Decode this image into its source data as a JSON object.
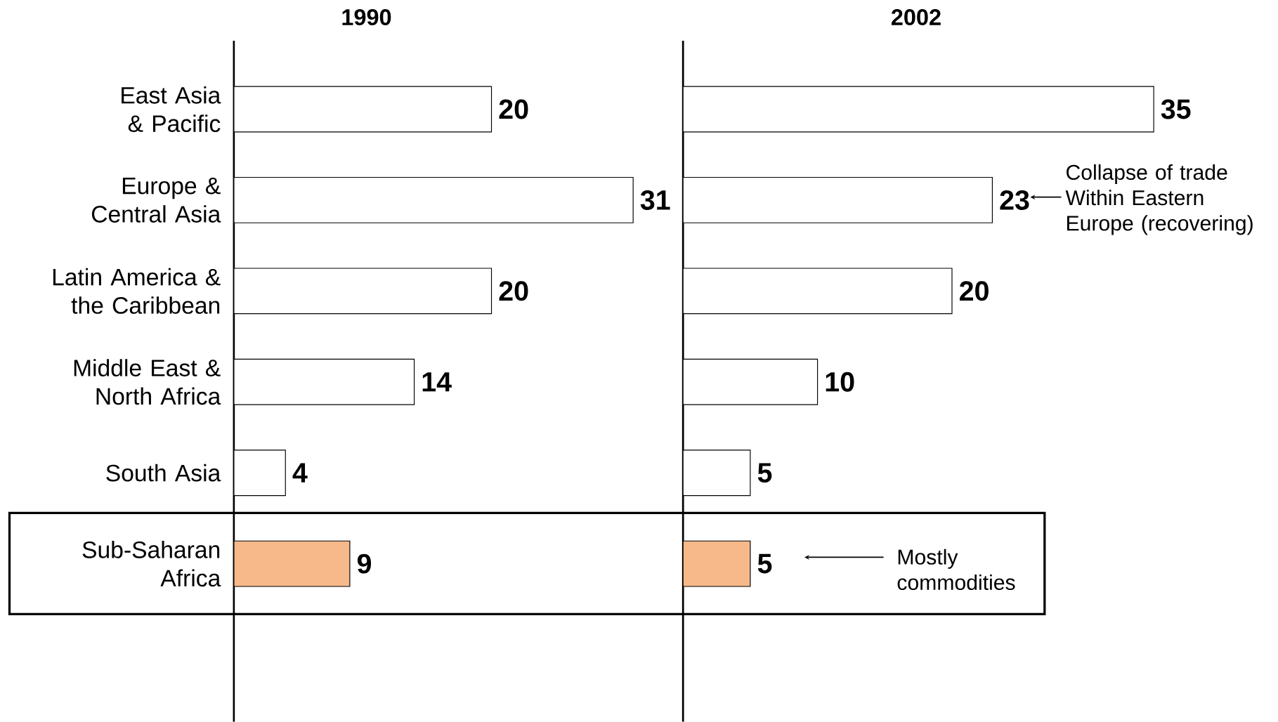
{
  "chart_data": [
    {
      "type": "bar",
      "orientation": "horizontal",
      "title": "1990",
      "categories": [
        "East Asia & Pacific",
        "Europe & Central Asia",
        "Latin America & the Caribbean",
        "Middle East & North Africa",
        "South Asia",
        "Sub-Saharan Africa"
      ],
      "values": [
        20,
        31,
        20,
        14,
        4,
        9
      ],
      "colors": [
        "#ffffff",
        "#ffffff",
        "#ffffff",
        "#ffffff",
        "#ffffff",
        "#f7b98a"
      ],
      "data_labels": true,
      "tick_labels": "y"
    },
    {
      "type": "bar",
      "orientation": "horizontal",
      "title": "2002",
      "categories": [
        null,
        null,
        null,
        null,
        null,
        null
      ],
      "values": [
        35,
        23,
        20,
        10,
        5,
        5
      ],
      "colors": [
        "#ffffff",
        "#ffffff",
        "#ffffff",
        "#ffffff",
        "#ffffff",
        "#f7b98a"
      ],
      "data_labels": true,
      "tick_labels": false,
      "annotations": [
        "Collapse of trade Within Eastern Europe (recovering)",
        "Mostly commodities"
      ]
    }
  ]
}
